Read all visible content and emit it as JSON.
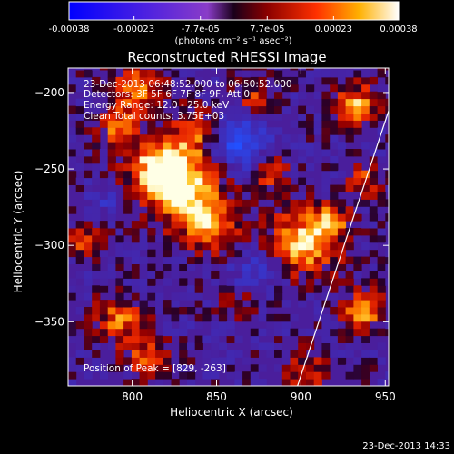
{
  "colorbar": {
    "tick_labels": [
      "-0.00038",
      "-0.00023",
      "-7.7e-05",
      "7.7e-05",
      "0.00023",
      "0.00038"
    ],
    "tick_values": [
      -0.00038,
      -0.00023,
      -7.7e-05,
      7.7e-05,
      0.00023,
      0.00038
    ],
    "range": [
      -0.00038,
      0.00038
    ],
    "units": "(photons cm⁻² s⁻¹ asec⁻²)"
  },
  "chart_data": {
    "type": "heatmap",
    "title": "Reconstructed RHESSI Image",
    "xlabel": "Heliocentric X (arcsec)",
    "ylabel": "Heliocentric Y (arcsec)",
    "xlim": [
      762,
      952
    ],
    "ylim": [
      -392,
      -184
    ],
    "x_ticks": [
      800,
      850,
      900,
      950
    ],
    "y_ticks": [
      -200,
      -250,
      -300,
      -350
    ],
    "annotations": [
      "23-Dec-2013 06:48:52.000 to 06:50:52.000",
      "Detectors: 3F 5F 6F 7F 8F 9F, Att 0",
      "Energy Range: 12.0 - 25.0 keV",
      "Clean     Total counts: 3.75E+03"
    ],
    "peak_label": "Position of Peak = [829, -263]",
    "peak_position": [
      829,
      -263
    ],
    "limb_line": [
      [
        898,
        -392
      ],
      [
        952,
        -212
      ]
    ]
  },
  "footer_timestamp": "23-Dec-2013 14:33"
}
